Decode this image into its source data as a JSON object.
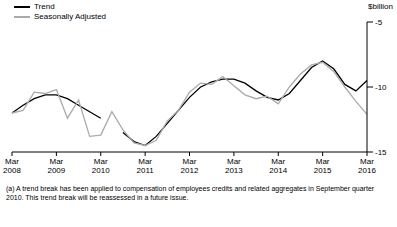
{
  "chart_data": {
    "type": "line",
    "y_label": "$billion",
    "categories": [
      "Mar 2008",
      null,
      null,
      null,
      "Mar 2009",
      null,
      null,
      null,
      "Mar 2010",
      null,
      null,
      null,
      "Mar 2011",
      null,
      null,
      null,
      "Mar 2012",
      null,
      null,
      null,
      "Mar 2013",
      null,
      null,
      null,
      "Mar 2014",
      null,
      null,
      null,
      "Mar 2015",
      null,
      null,
      null,
      "Mar 2016"
    ],
    "series": [
      {
        "name": "Trend",
        "color": "#000000",
        "values": [
          -12.0,
          -11.4,
          -10.9,
          -10.6,
          -10.6,
          -10.9,
          -11.4,
          -11.9,
          -12.4,
          null,
          -13.5,
          -14.2,
          -14.5,
          -13.8,
          -12.8,
          -11.8,
          -10.8,
          -10.0,
          -9.6,
          -9.4,
          -9.4,
          -9.7,
          -10.3,
          -10.8,
          -11.0,
          -10.5,
          -9.5,
          -8.5,
          -8.0,
          -8.6,
          -9.8,
          -10.3,
          -9.5
        ]
      },
      {
        "name": "Seasonally Adjusted",
        "color": "#aaaaaa",
        "values": [
          -12.0,
          -11.8,
          -10.4,
          -10.5,
          -10.2,
          -12.4,
          -11.0,
          -13.8,
          -13.7,
          -11.9,
          -13.3,
          -14.3,
          -14.5,
          -14.1,
          -12.6,
          -11.8,
          -10.4,
          -9.7,
          -9.8,
          -9.2,
          -9.9,
          -10.6,
          -10.9,
          -10.7,
          -11.3,
          -10.0,
          -9.0,
          -8.3,
          -8.1,
          -8.8,
          -10.0,
          -11.1,
          -12.1
        ]
      }
    ],
    "ylim": [
      -15,
      -5
    ],
    "yticks": [
      -15,
      -10,
      -5
    ],
    "grid": false,
    "legend": "top-left",
    "annotations": [
      "(a) A trend break has been applied to compensation of employees credits and related aggregates in September quarter 2010. This trend break will be reassessed in a future issue."
    ]
  }
}
